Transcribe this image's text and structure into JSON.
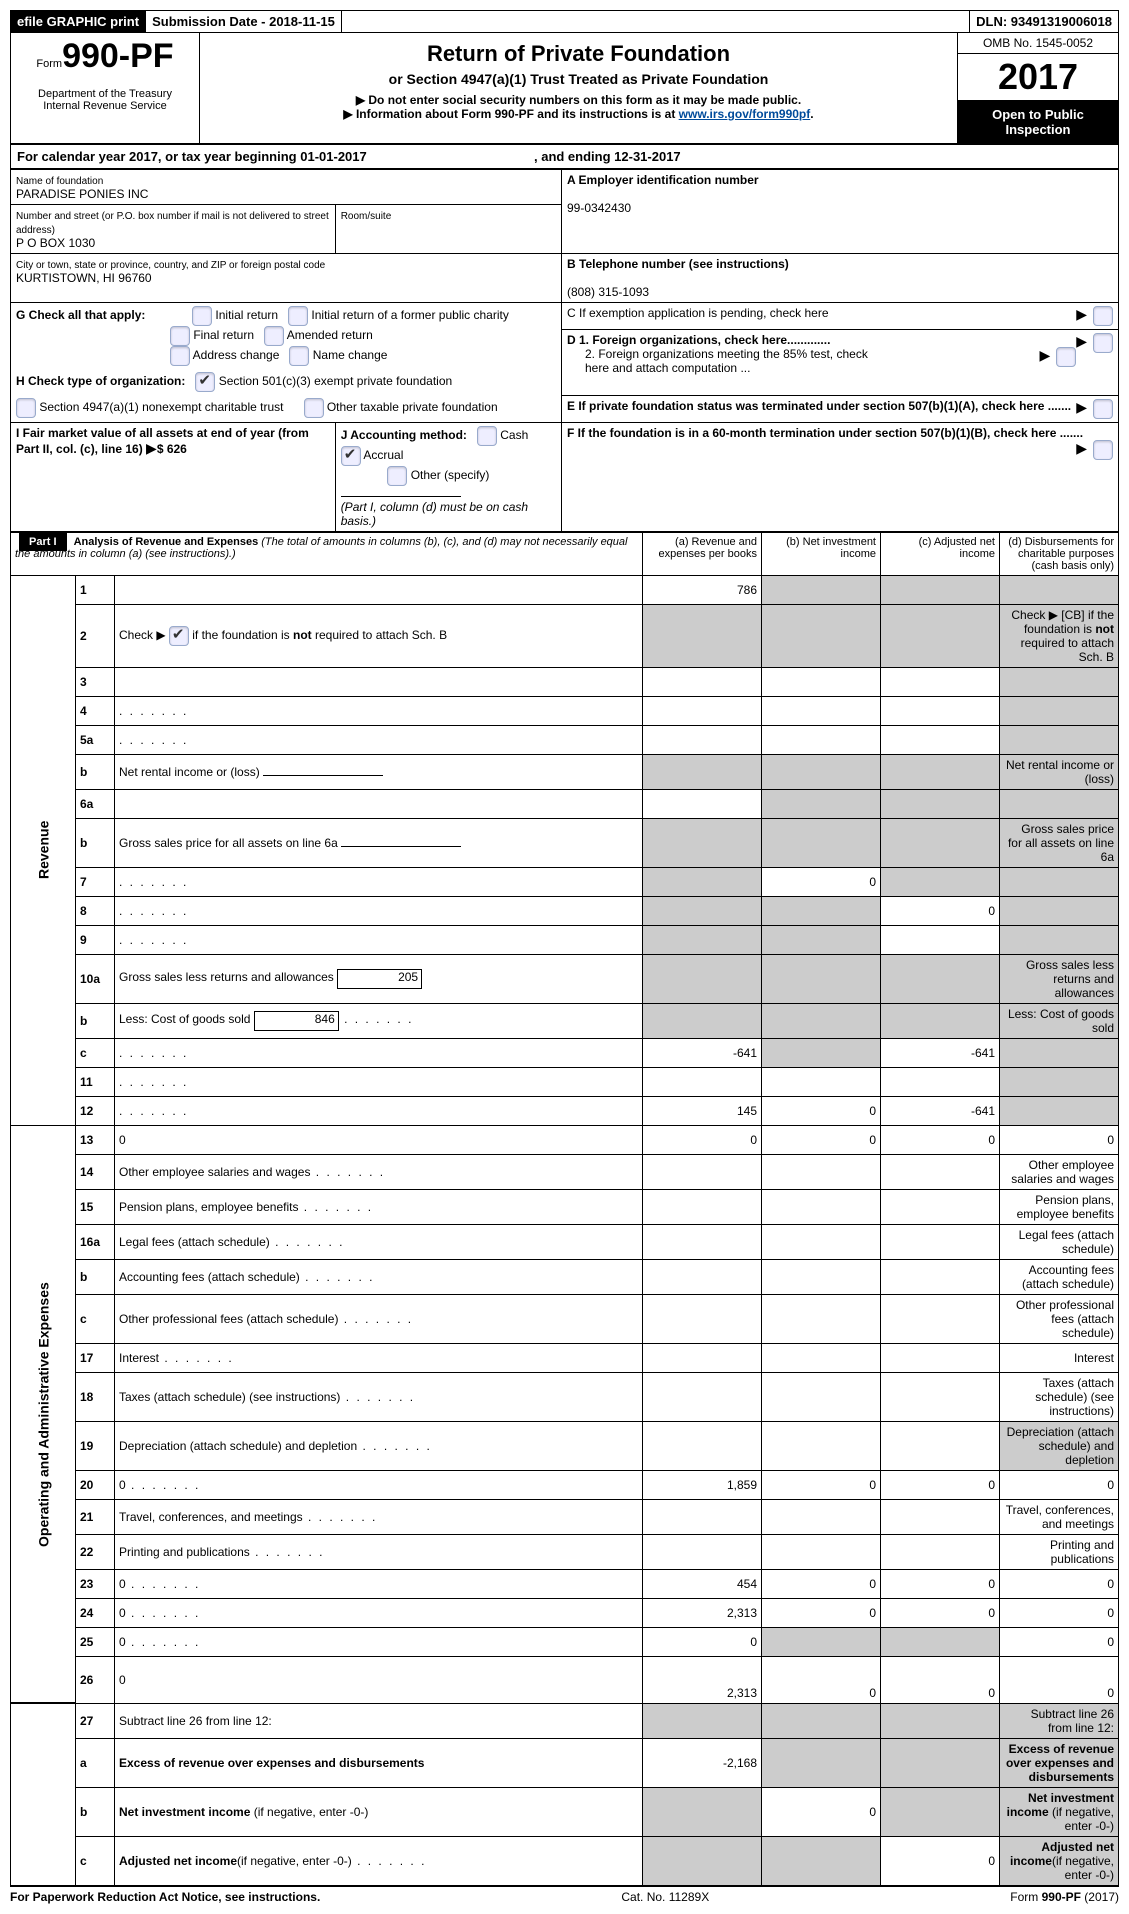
{
  "topbar": {
    "efile": "efile GRAPHIC print",
    "submission": "Submission Date - 2018-11-15",
    "dln": "DLN: 93491319006018"
  },
  "header": {
    "form_prefix": "Form",
    "form_num": "990-PF",
    "dept1": "Department of the Treasury",
    "dept2": "Internal Revenue Service",
    "title": "Return of Private Foundation",
    "sub1": "or Section 4947(a)(1) Trust Treated as Private Foundation",
    "sub2a": "▶ Do not enter social security numbers on this form as it may be made public.",
    "sub2b": "▶ Information about Form 990-PF and its instructions is at ",
    "link": "www.irs.gov/form990pf",
    "omb": "OMB No. 1545-0052",
    "year": "2017",
    "open": "Open to Public Inspection"
  },
  "calyear": {
    "prefix": "For calendar year 2017, or tax year beginning ",
    "begin": "01-01-2017",
    "mid": " , and ending ",
    "end": "12-31-2017"
  },
  "info": {
    "name_label": "Name of foundation",
    "name": "PARADISE PONIES INC",
    "street_label": "Number and street (or P.O. box number if mail is not delivered to street address)",
    "street": "P O BOX 1030",
    "room_label": "Room/suite",
    "city_label": "City or town, state or province, country, and ZIP or foreign postal code",
    "city": "KURTISTOWN, HI  96760",
    "A_label": "A Employer identification number",
    "A": "99-0342430",
    "B_label": "B Telephone number (see instructions)",
    "B": "(808) 315-1093",
    "C": "C  If exemption application is pending, check here",
    "G": "G Check all that apply:",
    "G_opts": [
      "Initial return",
      "Initial return of a former public charity",
      "Final return",
      "Amended return",
      "Address change",
      "Name change"
    ],
    "H": "H Check type of organization:",
    "H1": "Section 501(c)(3) exempt private foundation",
    "H2": "Section 4947(a)(1) nonexempt charitable trust",
    "H3": "Other taxable private foundation",
    "D1": "D 1. Foreign organizations, check here.............",
    "D2": "2. Foreign organizations meeting the 85% test, check here and attach computation ...",
    "E": "E   If private foundation status was terminated under section 507(b)(1)(A), check here .......",
    "I": "I Fair market value of all assets at end of year (from Part II, col. (c), line 16)",
    "I_val": "$  626",
    "J": "J Accounting method:",
    "J_cash": "Cash",
    "J_accrual": "Accrual",
    "J_other": "Other (specify)",
    "J_note": "(Part I, column (d) must be on cash basis.)",
    "F": "F   If the foundation is in a 60-month termination under section 507(b)(1)(B), check here ......."
  },
  "part1": {
    "tag": "Part I",
    "title": "Analysis of Revenue and Expenses ",
    "note": "(The total of amounts in columns (b), (c), and (d) may not necessarily equal the amounts in column (a) (see instructions).)",
    "col_a": "(a)    Revenue and expenses per books",
    "col_b": "(b)    Net investment income",
    "col_c": "(c)    Adjusted net income",
    "col_d": "(d)    Disbursements for charitable purposes (cash basis only)"
  },
  "sections": {
    "revenue": "Revenue",
    "expenses": "Operating and Administrative Expenses"
  },
  "rows": [
    {
      "n": "1",
      "d": "",
      "a": "786",
      "b": "",
      "c": "",
      "shade": [
        "b",
        "c",
        "d"
      ]
    },
    {
      "n": "2",
      "d": "Check ▶ [CB] if the foundation is <b>not</b> required to attach Sch. B",
      "empty": true,
      "shade": [
        "a",
        "b",
        "c",
        "d"
      ]
    },
    {
      "n": "3",
      "d": "",
      "a": "",
      "b": "",
      "c": "",
      "shade": [
        "d"
      ]
    },
    {
      "n": "4",
      "d": "",
      "dots": true,
      "a": "",
      "b": "",
      "c": "",
      "shade": [
        "d"
      ]
    },
    {
      "n": "5a",
      "d": "",
      "dots": true,
      "a": "",
      "b": "",
      "c": "",
      "shade": [
        "d"
      ]
    },
    {
      "n": "b",
      "d": "Net rental income or (loss)",
      "under": true,
      "empty": true,
      "shade": [
        "a",
        "b",
        "c",
        "d"
      ]
    },
    {
      "n": "6a",
      "d": "",
      "a": "",
      "b": "",
      "c": "",
      "shade": [
        "b",
        "c",
        "d"
      ]
    },
    {
      "n": "b",
      "d": "Gross sales price for all assets on line 6a",
      "under": true,
      "empty": true,
      "shade": [
        "a",
        "b",
        "c",
        "d"
      ]
    },
    {
      "n": "7",
      "d": "",
      "dots": true,
      "a": "",
      "b": "0",
      "c": "",
      "shade": [
        "a",
        "c",
        "d"
      ]
    },
    {
      "n": "8",
      "d": "",
      "dots": true,
      "a": "",
      "b": "",
      "c": "0",
      "shade": [
        "a",
        "b",
        "d"
      ]
    },
    {
      "n": "9",
      "d": "",
      "dots": true,
      "a": "",
      "b": "",
      "c": "",
      "shade": [
        "a",
        "b",
        "d"
      ]
    },
    {
      "n": "10a",
      "d": "Gross sales less returns and allowances",
      "box": "205",
      "empty": true,
      "shade": [
        "a",
        "b",
        "c",
        "d"
      ]
    },
    {
      "n": "b",
      "d": "Less: Cost of goods sold",
      "dots": true,
      "box": "846",
      "empty": true,
      "shade": [
        "a",
        "b",
        "c",
        "d"
      ]
    },
    {
      "n": "c",
      "d": "",
      "dots": true,
      "a": "-641",
      "b": "",
      "c": "-641",
      "shade": [
        "b",
        "d"
      ]
    },
    {
      "n": "11",
      "d": "",
      "dots": true,
      "a": "",
      "b": "",
      "c": "",
      "shade": [
        "d"
      ]
    },
    {
      "n": "12",
      "d": "",
      "dots": true,
      "a": "145",
      "b": "0",
      "c": "-641",
      "shade": [
        "d"
      ]
    }
  ],
  "rows2": [
    {
      "n": "13",
      "d": "0",
      "a": "0",
      "b": "0",
      "c": "0"
    },
    {
      "n": "14",
      "d": "Other employee salaries and wages",
      "dots": true
    },
    {
      "n": "15",
      "d": "Pension plans, employee benefits",
      "dots": true
    },
    {
      "n": "16a",
      "d": "Legal fees (attach schedule)",
      "dots": true
    },
    {
      "n": "b",
      "d": "Accounting fees (attach schedule)",
      "dots": true
    },
    {
      "n": "c",
      "d": "Other professional fees (attach schedule)",
      "dots": true
    },
    {
      "n": "17",
      "d": "Interest",
      "dots": true
    },
    {
      "n": "18",
      "d": "Taxes (attach schedule) (see instructions)",
      "dots": true
    },
    {
      "n": "19",
      "d": "Depreciation (attach schedule) and depletion",
      "dots": true,
      "shade": [
        "d"
      ]
    },
    {
      "n": "20",
      "d": "0",
      "dots": true,
      "a": "1,859",
      "b": "0",
      "c": "0"
    },
    {
      "n": "21",
      "d": "Travel, conferences, and meetings",
      "dots": true
    },
    {
      "n": "22",
      "d": "Printing and publications",
      "dots": true
    },
    {
      "n": "23",
      "d": "0",
      "dots": true,
      "a": "454",
      "b": "0",
      "c": "0"
    },
    {
      "n": "24",
      "d": "0",
      "dots": true,
      "a": "2,313",
      "b": "0",
      "c": "0"
    },
    {
      "n": "25",
      "d": "0",
      "dots": true,
      "a": "0",
      "b": "",
      "c": "",
      "shade": [
        "b",
        "c"
      ]
    },
    {
      "n": "26",
      "d": "0",
      "a": "2,313",
      "b": "0",
      "c": "0",
      "tall": true
    }
  ],
  "rows3": [
    {
      "n": "27",
      "d": "Subtract line 26 from line 12:",
      "shade": [
        "a",
        "b",
        "c",
        "d"
      ]
    },
    {
      "n": "a",
      "d": "<b>Excess of revenue over expenses and disbursements</b>",
      "a": "-2,168",
      "shade": [
        "b",
        "c",
        "d"
      ]
    },
    {
      "n": "b",
      "d": "<b>Net investment income</b> (if negative, enter -0-)",
      "b": "0",
      "shade": [
        "a",
        "c",
        "d"
      ]
    },
    {
      "n": "c",
      "d": "<b>Adjusted net income</b>(if negative, enter -0-)",
      "dots": true,
      "c": "0",
      "shade": [
        "a",
        "b",
        "d"
      ]
    }
  ],
  "footer": {
    "left": "For Paperwork Reduction Act Notice, see instructions.",
    "mid": "Cat. No. 11289X",
    "right": "Form 990-PF (2017)"
  }
}
